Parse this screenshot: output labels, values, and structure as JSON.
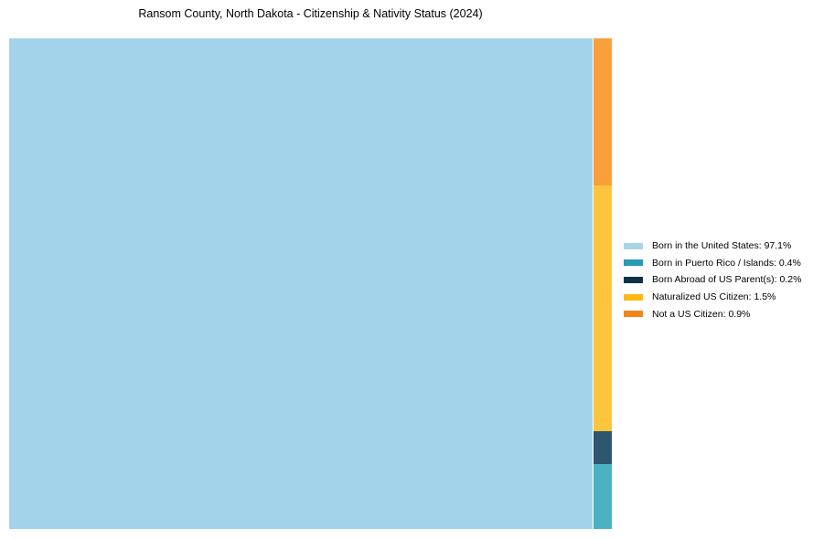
{
  "title": "Ransom County, North Dakota - Citizenship & Nativity Status (2024)",
  "chart_data": {
    "type": "treemap",
    "title": "Ransom County, North Dakota - Citizenship & Nativity Status (2024)",
    "categories": [
      "Born in the United States",
      "Born in Puerto Rico / Islands",
      "Born Abroad of US Parent(s)",
      "Naturalized US Citizen",
      "Not a US Citizen"
    ],
    "values": [
      97.1,
      0.4,
      0.2,
      1.5,
      0.9
    ],
    "unit": "%",
    "colors": {
      "fill": [
        "#a3d3ea",
        "#4bb2c2",
        "#2e566e",
        "#fdc53d",
        "#f9a03c"
      ],
      "legend": [
        "#a8d4ea",
        "#2a9ab6",
        "#0e3149",
        "#fdb814",
        "#f28519"
      ]
    },
    "layout": {
      "background": "#ffffff",
      "main_category_index": 0,
      "strip_order_top_to_bottom": [
        4,
        3,
        2,
        1
      ],
      "legend_position": "right-middle",
      "gridlines": false,
      "axes": false
    }
  },
  "legend": {
    "items": [
      {
        "text": "Born in the United States: 97.1%",
        "color": "#a8d4ea"
      },
      {
        "text": "Born in Puerto Rico / Islands: 0.4%",
        "color": "#2a9ab6"
      },
      {
        "text": "Born Abroad of US Parent(s): 0.2%",
        "color": "#0e3149"
      },
      {
        "text": "Naturalized US Citizen: 1.5%",
        "color": "#fdb814"
      },
      {
        "text": "Not a US Citizen: 0.9%",
        "color": "#f28519"
      }
    ]
  }
}
